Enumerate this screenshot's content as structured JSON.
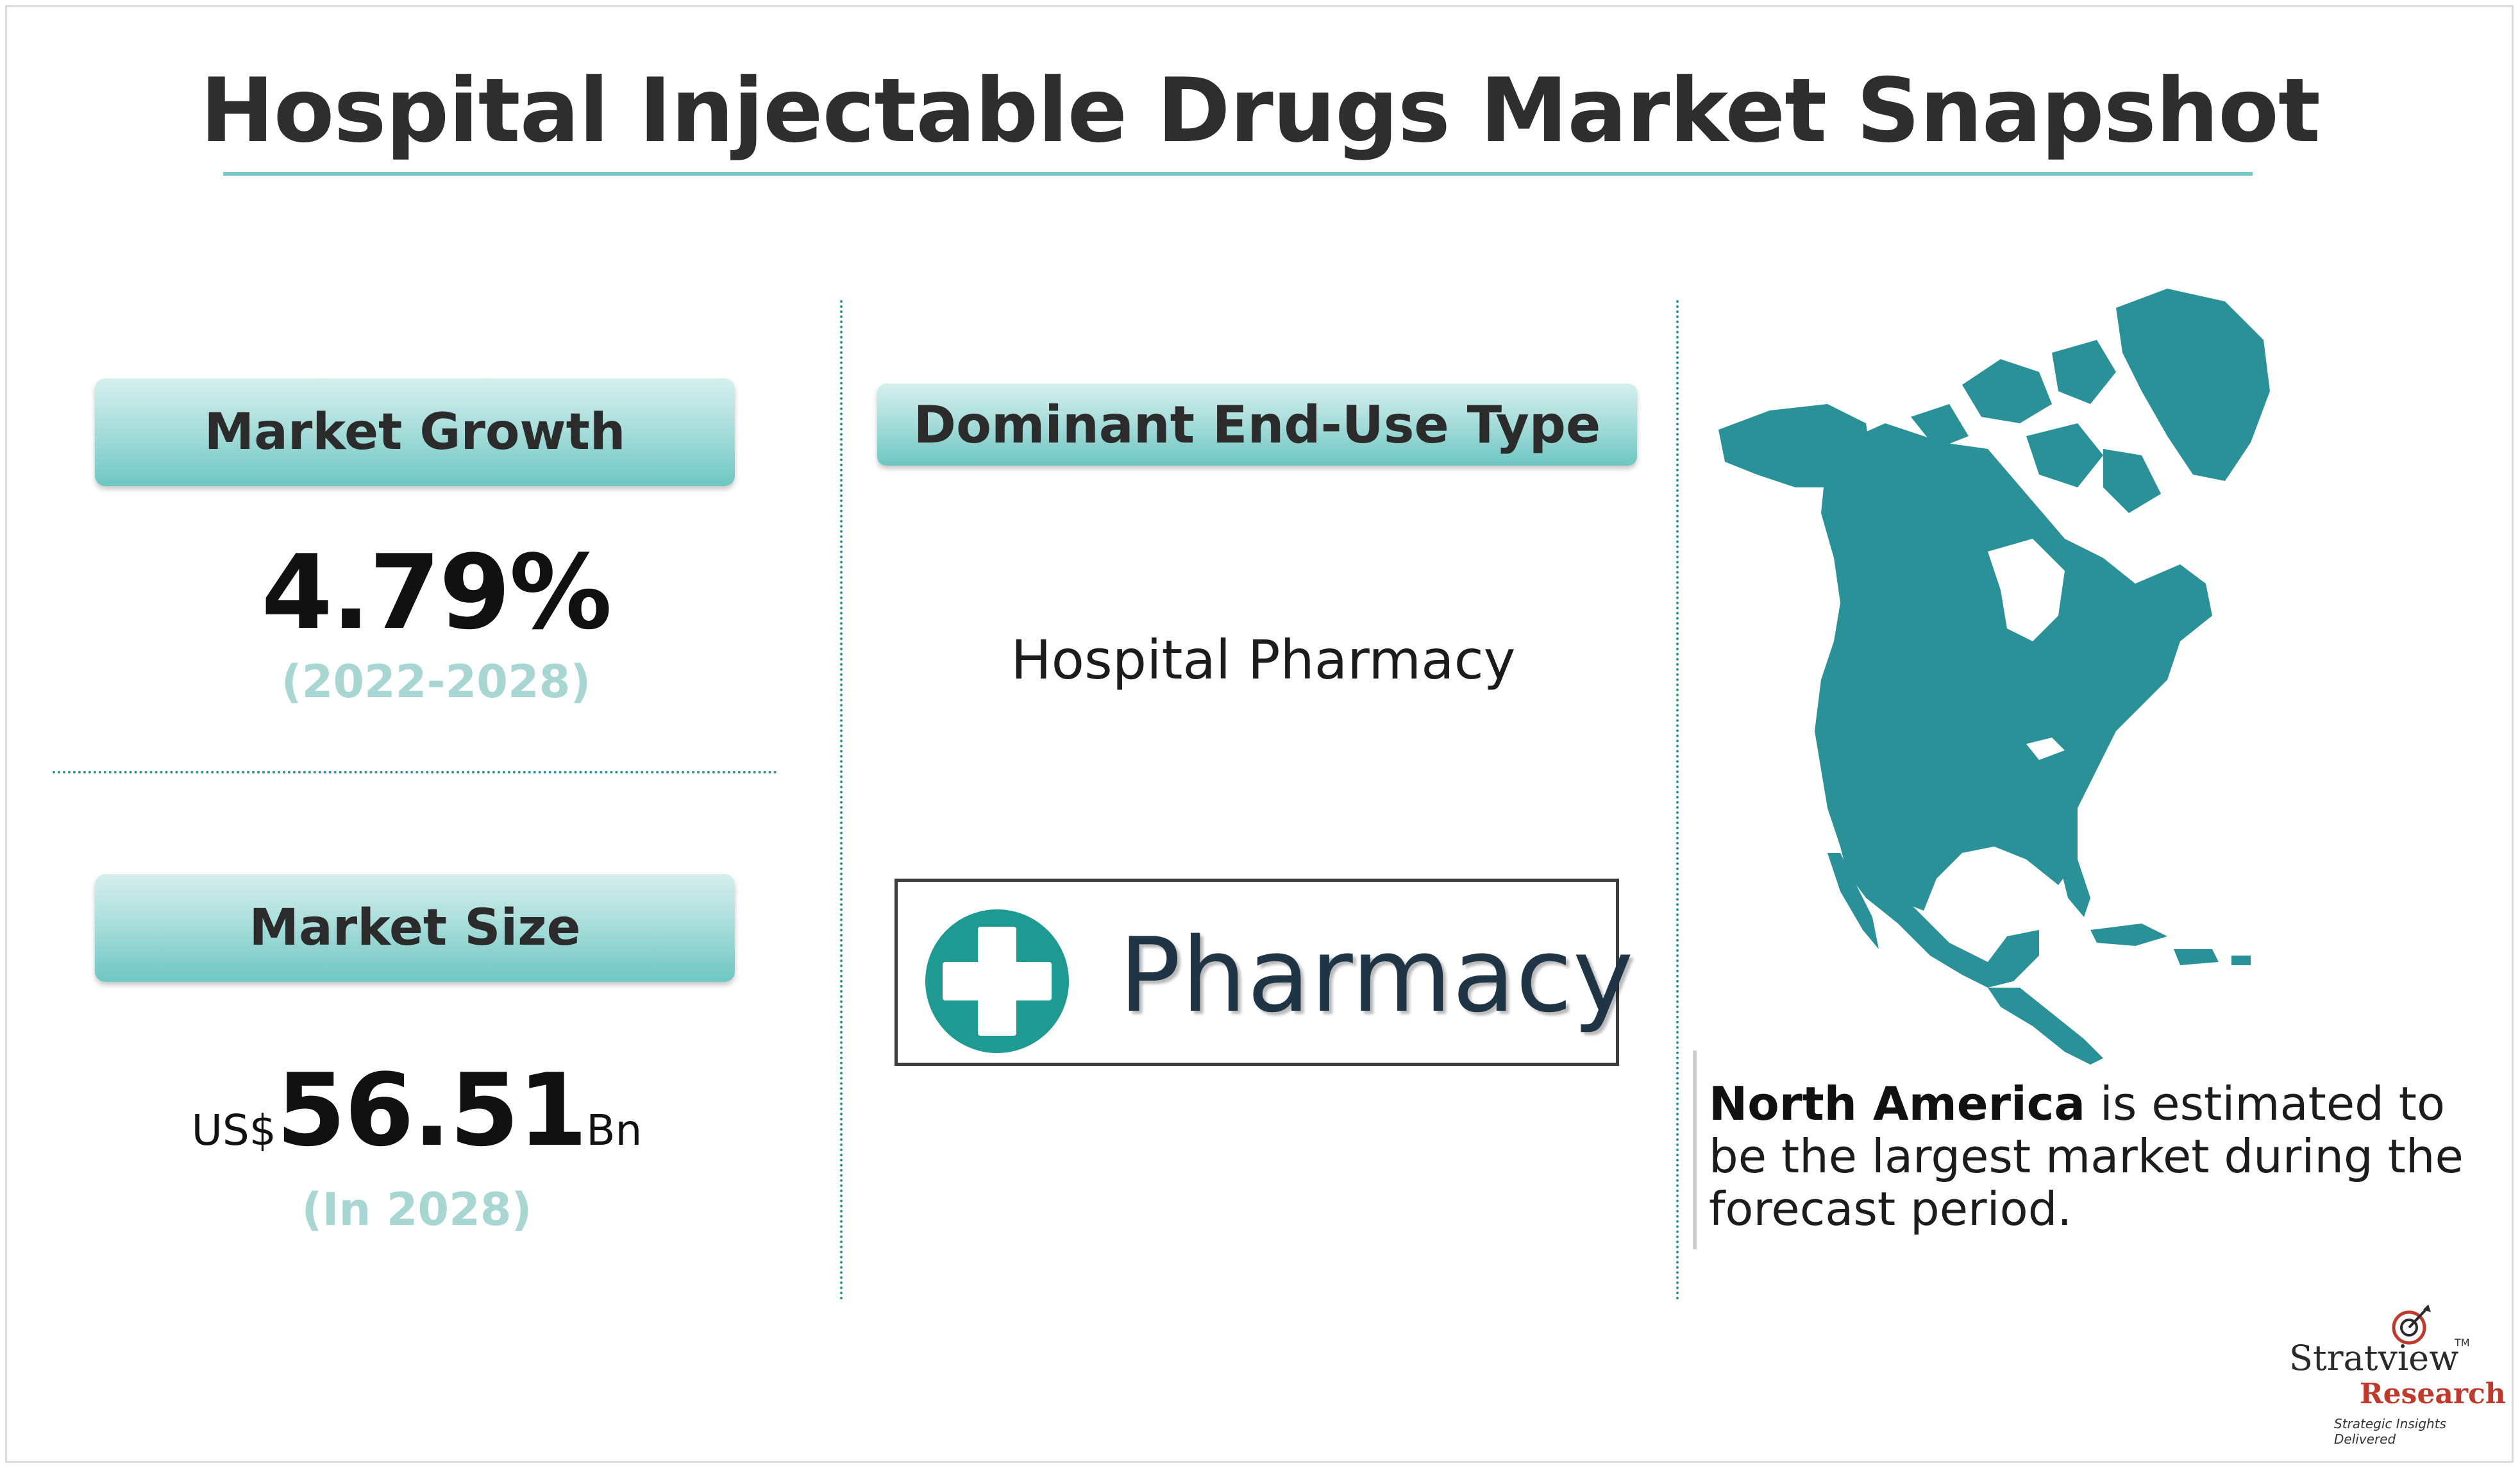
{
  "title": "Hospital Injectable Drugs Market Snapshot",
  "market_growth": {
    "label": "Market Growth",
    "value": "4.79%",
    "period": "(2022-2028)"
  },
  "market_size": {
    "label": "Market Size",
    "currency": "US$",
    "value": "56.51",
    "unit": "Bn",
    "period": "(In 2028)"
  },
  "end_use": {
    "label": "Dominant End-Use Type",
    "value": "Hospital Pharmacy",
    "image_word": "Pharmacy"
  },
  "region": {
    "name": "North America",
    "text": " is estimated to be the largest market during the forecast period."
  },
  "logo": {
    "line1": "Stratview",
    "tm": "TM",
    "line2": "Research",
    "tagline": "Strategic Insights Delivered"
  },
  "colors": {
    "teal": "#2a9199",
    "pill_teal": "#6ec6c2",
    "muted_teal_text": "#a8d6d3",
    "brand_red": "#c0392b"
  },
  "icons": {
    "map": "north-america-map-icon",
    "pharmacy_cross": "medical-cross-icon"
  }
}
